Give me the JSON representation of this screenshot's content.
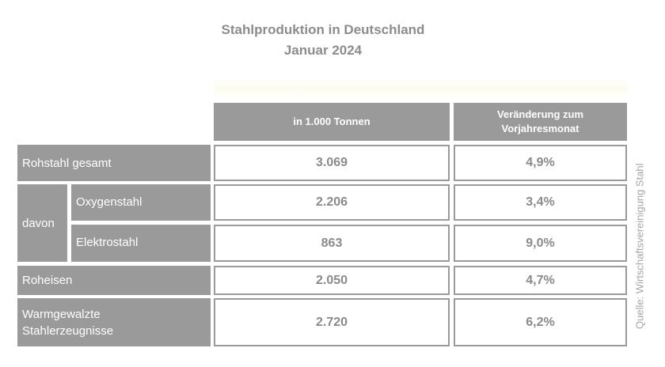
{
  "title": "Stahlproduktion in Deutschland",
  "subtitle": "Januar 2024",
  "columns": {
    "tonnes": "in 1.000 Tonnen",
    "change_line1": "Veränderung zum",
    "change_line2": "Vorjahresmonat"
  },
  "rows": {
    "rohstahl": {
      "label": "Rohstahl gesamt",
      "tonnes": "3.069",
      "change": "4,9%"
    },
    "davon_label": "davon",
    "oxygen": {
      "label": "Oxygenstahl",
      "tonnes": "2.206",
      "change": "3,4%"
    },
    "elektro": {
      "label": "Elektrostahl",
      "tonnes": "863",
      "change": "9,0%"
    },
    "roheisen": {
      "label": "Roheisen",
      "tonnes": "2.050",
      "change": "4,7%"
    },
    "warm": {
      "label_line1": "Warmgewalzte",
      "label_line2": "Stahlerzeugnisse",
      "tonnes": "2.720",
      "change": "6,2%"
    }
  },
  "source": "Quelle: Wirtschaftsvereinigung Stahl",
  "colors": {
    "header_fill": "#9a9a9a",
    "text_gray": "#8a8a8a",
    "background": "#ffffff"
  },
  "chart_data": {
    "type": "table",
    "title": "Stahlproduktion in Deutschland",
    "subtitle": "Januar 2024",
    "columns": [
      "in 1.000 Tonnen",
      "Veränderung zum Vorjahresmonat"
    ],
    "rows": [
      {
        "label": "Rohstahl gesamt",
        "values": [
          "3.069",
          "4,9%"
        ]
      },
      {
        "label": "Oxygenstahl",
        "group": "davon",
        "values": [
          "2.206",
          "3,4%"
        ]
      },
      {
        "label": "Elektrostahl",
        "group": "davon",
        "values": [
          "863",
          "9,0%"
        ]
      },
      {
        "label": "Roheisen",
        "values": [
          "2.050",
          "4,7%"
        ]
      },
      {
        "label": "Warmgewalzte Stahlerzeugnisse",
        "values": [
          "2.720",
          "6,2%"
        ]
      }
    ]
  }
}
